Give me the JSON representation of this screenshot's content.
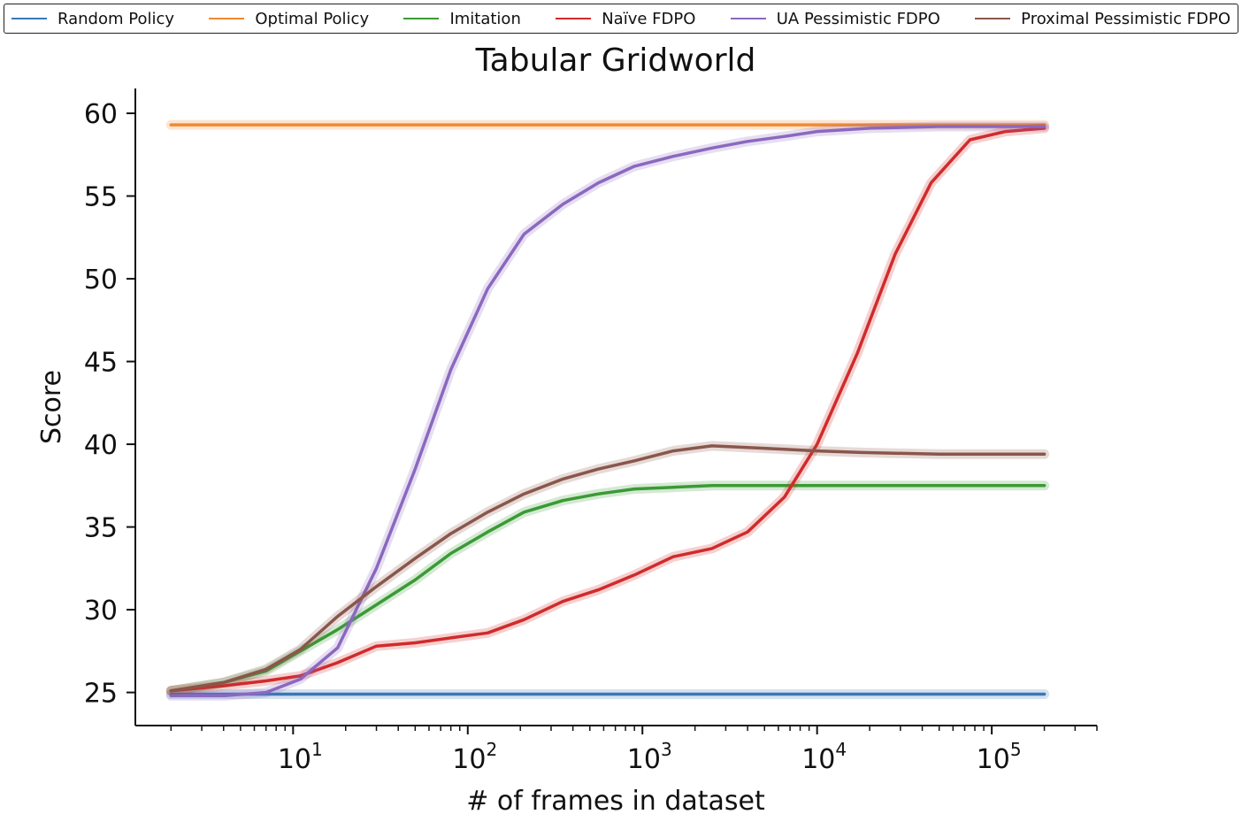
{
  "chart_data": {
    "type": "line",
    "title": "Tabular Gridworld",
    "xlabel": "# of frames in dataset",
    "ylabel": "Score",
    "xscale": "log",
    "xlim": [
      1.25,
      400000
    ],
    "ylim": [
      23,
      61.5
    ],
    "yticks": [
      25,
      30,
      35,
      40,
      45,
      50,
      55,
      60
    ],
    "xticks": [
      {
        "value": 10,
        "base": "10",
        "exp": "1"
      },
      {
        "value": 100,
        "base": "10",
        "exp": "2"
      },
      {
        "value": 1000,
        "base": "10",
        "exp": "3"
      },
      {
        "value": 10000,
        "base": "10",
        "exp": "4"
      },
      {
        "value": 100000,
        "base": "10",
        "exp": "5"
      }
    ],
    "grid": false,
    "legend_position": "top",
    "series": [
      {
        "name": "Random Policy",
        "color": "#3a78b4",
        "points": [
          [
            2,
            24.9
          ],
          [
            200000,
            24.9
          ]
        ]
      },
      {
        "name": "Optimal Policy",
        "color": "#f08a32",
        "points": [
          [
            2,
            59.3
          ],
          [
            200000,
            59.3
          ]
        ]
      },
      {
        "name": "Imitation",
        "color": "#3b9a35",
        "points": [
          [
            2,
            25.1
          ],
          [
            4,
            25.6
          ],
          [
            7,
            26.3
          ],
          [
            11,
            27.5
          ],
          [
            18,
            28.8
          ],
          [
            30,
            30.3
          ],
          [
            50,
            31.8
          ],
          [
            80,
            33.4
          ],
          [
            130,
            34.7
          ],
          [
            210,
            35.9
          ],
          [
            350,
            36.6
          ],
          [
            560,
            37.0
          ],
          [
            900,
            37.3
          ],
          [
            1500,
            37.4
          ],
          [
            2500,
            37.5
          ],
          [
            10000,
            37.5
          ],
          [
            50000,
            37.5
          ],
          [
            200000,
            37.5
          ]
        ]
      },
      {
        "name": "Naïve FDPO",
        "color": "#d02b2b",
        "points": [
          [
            2,
            25.1
          ],
          [
            4,
            25.4
          ],
          [
            7,
            25.7
          ],
          [
            11,
            26.0
          ],
          [
            18,
            26.8
          ],
          [
            30,
            27.8
          ],
          [
            50,
            28.0
          ],
          [
            80,
            28.3
          ],
          [
            130,
            28.6
          ],
          [
            210,
            29.4
          ],
          [
            350,
            30.5
          ],
          [
            560,
            31.2
          ],
          [
            900,
            32.1
          ],
          [
            1500,
            33.2
          ],
          [
            2500,
            33.7
          ],
          [
            4000,
            34.7
          ],
          [
            6500,
            36.8
          ],
          [
            10000,
            40.0
          ],
          [
            17000,
            45.5
          ],
          [
            28000,
            51.5
          ],
          [
            45000,
            55.8
          ],
          [
            75000,
            58.4
          ],
          [
            120000,
            58.9
          ],
          [
            200000,
            59.1
          ]
        ]
      },
      {
        "name": "UA Pessimistic FDPO",
        "color": "#8b68bf",
        "points": [
          [
            2,
            24.8
          ],
          [
            4,
            24.8
          ],
          [
            7,
            25.0
          ],
          [
            11,
            25.8
          ],
          [
            18,
            27.7
          ],
          [
            30,
            32.5
          ],
          [
            50,
            38.5
          ],
          [
            80,
            44.5
          ],
          [
            130,
            49.4
          ],
          [
            210,
            52.7
          ],
          [
            350,
            54.5
          ],
          [
            560,
            55.8
          ],
          [
            900,
            56.8
          ],
          [
            1500,
            57.4
          ],
          [
            2500,
            57.9
          ],
          [
            4000,
            58.3
          ],
          [
            6500,
            58.6
          ],
          [
            10000,
            58.9
          ],
          [
            20000,
            59.1
          ],
          [
            50000,
            59.2
          ],
          [
            200000,
            59.2
          ]
        ]
      },
      {
        "name": "Proximal Pessimistic FDPO",
        "color": "#8a564b",
        "points": [
          [
            2,
            25.1
          ],
          [
            4,
            25.6
          ],
          [
            7,
            26.4
          ],
          [
            11,
            27.6
          ],
          [
            18,
            29.6
          ],
          [
            30,
            31.4
          ],
          [
            50,
            33.1
          ],
          [
            80,
            34.6
          ],
          [
            130,
            35.9
          ],
          [
            210,
            37.0
          ],
          [
            350,
            37.9
          ],
          [
            560,
            38.5
          ],
          [
            900,
            39.0
          ],
          [
            1500,
            39.6
          ],
          [
            2500,
            39.9
          ],
          [
            4000,
            39.8
          ],
          [
            6500,
            39.7
          ],
          [
            10000,
            39.6
          ],
          [
            18000,
            39.5
          ],
          [
            50000,
            39.4
          ],
          [
            200000,
            39.4
          ]
        ]
      }
    ]
  }
}
